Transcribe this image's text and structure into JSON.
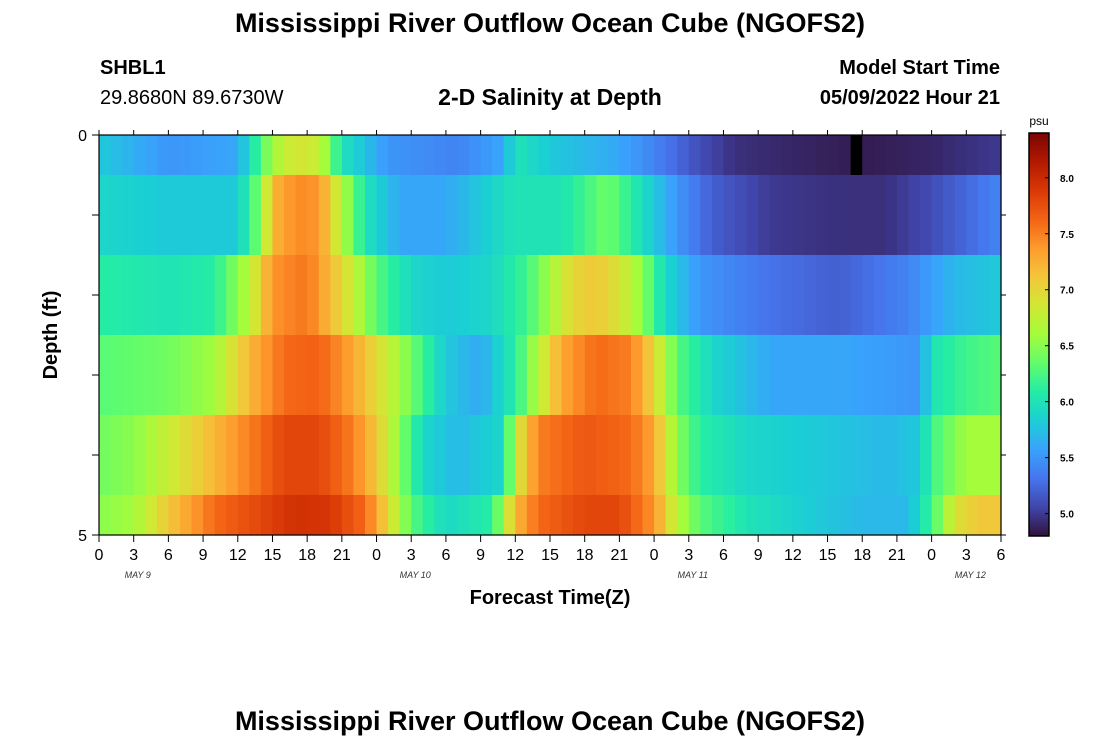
{
  "titles": {
    "main": "Mississippi River Outflow Ocean Cube (NGOFS2)",
    "second": "Mississippi River Outflow Ocean Cube (NGOFS2)",
    "subtitle": "2-D Salinity at Depth"
  },
  "station": {
    "id": "SHBL1",
    "coords": "29.8680N  89.6730W"
  },
  "model_start": {
    "label": "Model Start Time",
    "value": "05/09/2022 Hour 21"
  },
  "colors": {
    "colormap": [
      "#30123b",
      "#4145ab",
      "#4675ed",
      "#39a2fc",
      "#1bcfd4",
      "#24eca6",
      "#61fc6c",
      "#a4fc3b",
      "#d1e834",
      "#f3c63a",
      "#fe9b2d",
      "#f36315",
      "#d93806",
      "#b11901",
      "#7a0403"
    ],
    "missing": "#000000"
  },
  "chart_data": {
    "type": "heatmap",
    "title": "2-D Salinity at Depth",
    "xlabel": "Forecast Time(Z)",
    "ylabel": "Depth (ft)",
    "x_tick_labels": [
      "0",
      "3",
      "6",
      "9",
      "12",
      "15",
      "18",
      "21",
      "0",
      "3",
      "6",
      "9",
      "12",
      "15",
      "18",
      "21",
      "0",
      "3",
      "6",
      "9",
      "12",
      "15",
      "18",
      "21",
      "0",
      "3",
      "6"
    ],
    "date_labels": [
      "MAY 9",
      "MAY 10",
      "MAY 11",
      "MAY 12"
    ],
    "x_range_hours": [
      0,
      78
    ],
    "y_tick_labels": [
      "0",
      "5"
    ],
    "ylim": [
      0,
      5
    ],
    "colorbar": {
      "unit": "psu",
      "ticks": [
        "8.0",
        "7.5",
        "7.0",
        "6.5",
        "6.0",
        "5.5",
        "5.0"
      ],
      "range": [
        4.8,
        8.4
      ]
    },
    "missing_value_hour": 65,
    "layers": [
      {
        "depth_range": [
          0,
          0.5
        ],
        "knots": [
          [
            0,
            5.8
          ],
          [
            6,
            5.5
          ],
          [
            12,
            5.6
          ],
          [
            15,
            6.6
          ],
          [
            17,
            6.9
          ],
          [
            19,
            6.8
          ],
          [
            21,
            6.0
          ],
          [
            25,
            5.5
          ],
          [
            31,
            5.4
          ],
          [
            35,
            5.6
          ],
          [
            36,
            6.0
          ],
          [
            39,
            5.8
          ],
          [
            45,
            5.6
          ],
          [
            48,
            5.4
          ],
          [
            52,
            5.1
          ],
          [
            55,
            4.95
          ],
          [
            60,
            4.9
          ],
          [
            66,
            4.85
          ],
          [
            72,
            4.9
          ],
          [
            78,
            5.0
          ]
        ]
      },
      {
        "depth_range": [
          0.5,
          1.5
        ],
        "knots": [
          [
            0,
            5.9
          ],
          [
            6,
            5.8
          ],
          [
            12,
            5.8
          ],
          [
            14,
            6.5
          ],
          [
            15,
            7.2
          ],
          [
            17,
            7.45
          ],
          [
            19,
            7.4
          ],
          [
            21,
            6.7
          ],
          [
            23,
            6.0
          ],
          [
            26,
            5.6
          ],
          [
            30,
            5.6
          ],
          [
            36,
            6.0
          ],
          [
            40,
            6.0
          ],
          [
            44,
            6.4
          ],
          [
            46,
            6.1
          ],
          [
            48,
            5.8
          ],
          [
            50,
            5.5
          ],
          [
            53,
            5.2
          ],
          [
            58,
            5.0
          ],
          [
            64,
            4.95
          ],
          [
            68,
            4.95
          ],
          [
            72,
            5.1
          ],
          [
            78,
            5.4
          ]
        ]
      },
      {
        "depth_range": [
          1.5,
          2.5
        ],
        "knots": [
          [
            0,
            6.1
          ],
          [
            6,
            6.0
          ],
          [
            10,
            6.1
          ],
          [
            13,
            6.7
          ],
          [
            15,
            7.4
          ],
          [
            18,
            7.55
          ],
          [
            21,
            7.0
          ],
          [
            24,
            6.3
          ],
          [
            27,
            5.9
          ],
          [
            30,
            5.8
          ],
          [
            34,
            5.9
          ],
          [
            37,
            6.2
          ],
          [
            39,
            6.6
          ],
          [
            41,
            7.0
          ],
          [
            43,
            7.1
          ],
          [
            45,
            6.9
          ],
          [
            47,
            6.5
          ],
          [
            49,
            5.9
          ],
          [
            52,
            5.5
          ],
          [
            58,
            5.3
          ],
          [
            64,
            5.2
          ],
          [
            70,
            5.4
          ],
          [
            74,
            5.7
          ],
          [
            78,
            5.8
          ]
        ]
      },
      {
        "depth_range": [
          2.5,
          3.5
        ],
        "knots": [
          [
            0,
            6.3
          ],
          [
            6,
            6.4
          ],
          [
            10,
            6.6
          ],
          [
            13,
            7.2
          ],
          [
            16,
            7.6
          ],
          [
            19,
            7.65
          ],
          [
            22,
            7.3
          ],
          [
            25,
            6.8
          ],
          [
            28,
            6.2
          ],
          [
            30,
            5.8
          ],
          [
            33,
            5.6
          ],
          [
            36,
            6.1
          ],
          [
            38,
            6.7
          ],
          [
            40,
            7.3
          ],
          [
            43,
            7.6
          ],
          [
            46,
            7.5
          ],
          [
            48,
            7.0
          ],
          [
            50,
            6.3
          ],
          [
            53,
            5.9
          ],
          [
            58,
            5.6
          ],
          [
            64,
            5.6
          ],
          [
            71,
            5.5
          ],
          [
            72,
            6.0
          ],
          [
            75,
            6.2
          ],
          [
            78,
            6.3
          ]
        ]
      },
      {
        "depth_range": [
          3.5,
          4.5
        ],
        "knots": [
          [
            0,
            6.4
          ],
          [
            3,
            6.5
          ],
          [
            6,
            6.8
          ],
          [
            10,
            7.2
          ],
          [
            13,
            7.5
          ],
          [
            16,
            7.8
          ],
          [
            19,
            7.8
          ],
          [
            22,
            7.5
          ],
          [
            24,
            7.1
          ],
          [
            26,
            6.5
          ],
          [
            28,
            5.9
          ],
          [
            31,
            5.7
          ],
          [
            35,
            5.9
          ],
          [
            36,
            6.8
          ],
          [
            38,
            7.5
          ],
          [
            42,
            7.7
          ],
          [
            46,
            7.6
          ],
          [
            48,
            7.3
          ],
          [
            50,
            6.5
          ],
          [
            52,
            6.1
          ],
          [
            56,
            5.9
          ],
          [
            62,
            5.8
          ],
          [
            68,
            5.7
          ],
          [
            71,
            5.8
          ],
          [
            72,
            6.2
          ],
          [
            75,
            6.6
          ],
          [
            78,
            6.6
          ]
        ]
      },
      {
        "depth_range": [
          4.5,
          5
        ],
        "knots": [
          [
            0,
            6.5
          ],
          [
            3,
            6.6
          ],
          [
            6,
            7.1
          ],
          [
            10,
            7.6
          ],
          [
            14,
            7.8
          ],
          [
            17,
            7.95
          ],
          [
            20,
            7.9
          ],
          [
            23,
            7.6
          ],
          [
            25,
            7.0
          ],
          [
            27,
            6.3
          ],
          [
            30,
            5.9
          ],
          [
            34,
            6.1
          ],
          [
            36,
            7.2
          ],
          [
            38,
            7.6
          ],
          [
            42,
            7.8
          ],
          [
            45,
            7.8
          ],
          [
            48,
            7.4
          ],
          [
            50,
            6.7
          ],
          [
            52,
            6.3
          ],
          [
            56,
            6.0
          ],
          [
            62,
            5.8
          ],
          [
            66,
            5.7
          ],
          [
            70,
            5.7
          ],
          [
            72,
            6.2
          ],
          [
            74,
            6.9
          ],
          [
            76,
            7.1
          ],
          [
            78,
            7.1
          ]
        ]
      }
    ]
  }
}
